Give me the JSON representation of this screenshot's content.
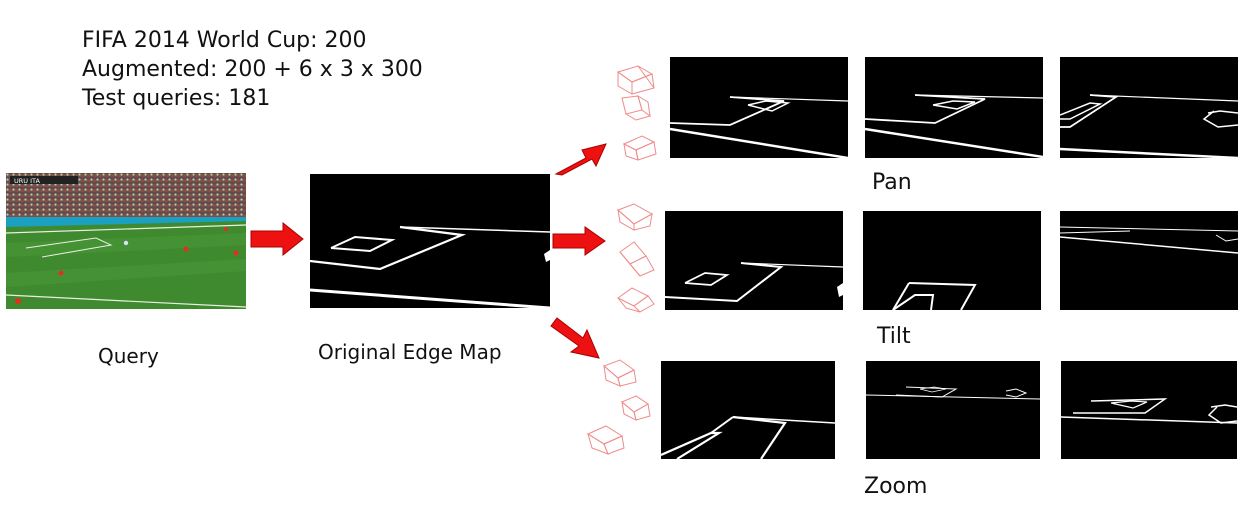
{
  "stats": {
    "line1": "FIFA 2014 World Cup: 200",
    "line2": "Augmented: 200 + 6 x 3 x 300",
    "line3": "Test queries: 181"
  },
  "labels": {
    "query": "Query",
    "original": "Original Edge Map",
    "pan": "Pan",
    "tilt": "Tilt",
    "zoom": "Zoom"
  },
  "query_scoreboard": "URU ITA",
  "colors": {
    "arrow": "#ee1111",
    "camera": "#f08a8a",
    "edge_background": "#000000",
    "field_line": "#ffffff",
    "pitch": "#3f8a2f"
  }
}
